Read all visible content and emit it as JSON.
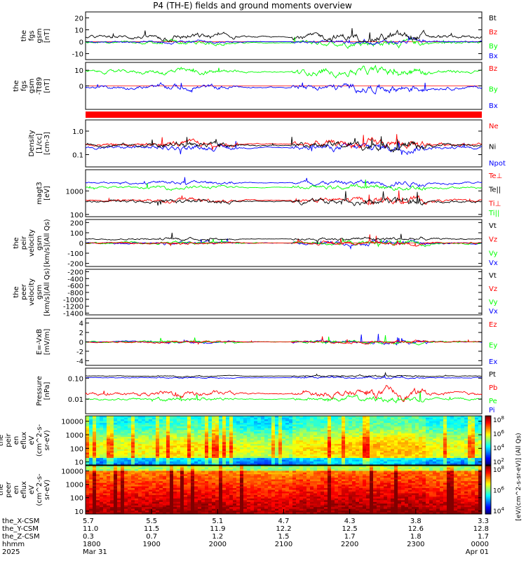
{
  "title": "P4 (TH-E) fields and ground moments overview",
  "colorbar_label": "[eV/(cm^2-s-sr-eV)] (All Qs)",
  "colors": {
    "black": "#000000",
    "red": "#ff0000",
    "green": "#00ff00",
    "blue": "#0000ff",
    "frame": "#000000"
  },
  "x_axis": {
    "row_labels": [
      "the_X-CSM",
      "the_Y-CSM",
      "the_Z-CSM",
      "hhmm",
      "2025"
    ],
    "ticks": [
      {
        "x_csm": "5.7",
        "y_csm": "11.0",
        "z_csm": "0.3",
        "hhmm": "1800",
        "date": "Mar 31"
      },
      {
        "x_csm": "5.5",
        "y_csm": "11.5",
        "z_csm": "0.7",
        "hhmm": "1900",
        "date": ""
      },
      {
        "x_csm": "5.1",
        "y_csm": "11.9",
        "z_csm": "1.2",
        "hhmm": "2000",
        "date": ""
      },
      {
        "x_csm": "4.7",
        "y_csm": "12.2",
        "z_csm": "1.5",
        "hhmm": "2100",
        "date": ""
      },
      {
        "x_csm": "4.3",
        "y_csm": "12.5",
        "z_csm": "1.7",
        "hhmm": "2200",
        "date": ""
      },
      {
        "x_csm": "3.8",
        "y_csm": "12.6",
        "z_csm": "1.8",
        "hhmm": "2300",
        "date": ""
      },
      {
        "x_csm": "3.3",
        "y_csm": "12.8",
        "z_csm": "1.7",
        "hhmm": "0000",
        "date": "Apr 01"
      }
    ]
  },
  "chart_data": [
    {
      "type": "line",
      "ylabel": "the fgs gsm [nT]",
      "ylim": [
        -15,
        25
      ],
      "yticks": [
        "20",
        "10",
        "0",
        "-10"
      ],
      "series": [
        {
          "name": "Bt",
          "color": "black"
        },
        {
          "name": "Bz",
          "color": "red"
        },
        {
          "name": "By",
          "color": "green"
        },
        {
          "name": "Bx",
          "color": "blue"
        }
      ]
    },
    {
      "type": "line",
      "ylabel": "the fgs gsm -Tt89 [nT]",
      "ylim": [
        -15,
        15
      ],
      "yticks": [
        "10",
        "0"
      ],
      "series": [
        {
          "name": "Bz",
          "color": "red"
        },
        {
          "name": "By",
          "color": "green"
        },
        {
          "name": "Bx",
          "color": "blue"
        }
      ]
    },
    {
      "type": "line",
      "ylabel": "Density [1/cc] [cm-3]",
      "log": true,
      "ylim": [
        0.03,
        3
      ],
      "yticks": [
        "1.0",
        "0.1"
      ],
      "series": [
        {
          "name": "Ne",
          "color": "red"
        },
        {
          "name": "Ni",
          "color": "black"
        },
        {
          "name": "Npot",
          "color": "blue"
        }
      ]
    },
    {
      "type": "line",
      "ylabel": "magt3 [eV]",
      "log": true,
      "ylim": [
        80,
        8000
      ],
      "yticks": [
        "1000",
        "100"
      ],
      "series": [
        {
          "name": "Te⊥",
          "color": "red"
        },
        {
          "name": "Te||",
          "color": "black"
        },
        {
          "name": "Ti⊥",
          "color": "red"
        },
        {
          "name": "Ti||",
          "color": "green"
        }
      ]
    },
    {
      "type": "line",
      "ylabel": "the peir velocity gsm [km/s](All Qs)",
      "ylim": [
        -230,
        230
      ],
      "yticks": [
        "200",
        "100",
        "0",
        "-100",
        "-200"
      ],
      "series": [
        {
          "name": "Vt",
          "color": "black"
        },
        {
          "name": "Vz",
          "color": "red"
        },
        {
          "name": "Vy",
          "color": "green"
        },
        {
          "name": "Vx",
          "color": "blue"
        }
      ]
    },
    {
      "type": "line",
      "ylabel": "the peer velocity gsm [km/s](All Qs)",
      "ylim": [
        -1450,
        -130
      ],
      "yticks": [
        "-200",
        "-400",
        "-600",
        "-800",
        "-1000",
        "-1200",
        "-1400"
      ],
      "series": [
        {
          "name": "Vt",
          "color": "black"
        },
        {
          "name": "Vz",
          "color": "red"
        },
        {
          "name": "Vy",
          "color": "green"
        },
        {
          "name": "Vx",
          "color": "blue"
        }
      ]
    },
    {
      "type": "line",
      "ylabel": "E=-VxB [mV/m]",
      "ylim": [
        -5,
        5
      ],
      "yticks": [
        "4",
        "2",
        "0",
        "-2",
        "-4"
      ],
      "series": [
        {
          "name": "Ez",
          "color": "red"
        },
        {
          "name": "Ey",
          "color": "green"
        },
        {
          "name": "Ex",
          "color": "blue"
        }
      ]
    },
    {
      "type": "line",
      "ylabel": "Pressure [nPa]",
      "log": true,
      "ylim": [
        0.002,
        0.3
      ],
      "yticks": [
        "0.10",
        "0.01"
      ],
      "series": [
        {
          "name": "Pt",
          "color": "black"
        },
        {
          "name": "Pb",
          "color": "red"
        },
        {
          "name": "Pe",
          "color": "green"
        },
        {
          "name": "Pi",
          "color": "blue"
        }
      ]
    },
    {
      "type": "heatmap",
      "ylabel": "the peir en eflux eV (cm^2-s-sr-eV)",
      "log": true,
      "ylim": [
        6,
        25000
      ],
      "yticks": [
        "10000",
        "1000",
        "100",
        "10"
      ],
      "colorbar_ticks": [
        "10^8",
        "10^6",
        "10^4",
        "10^2"
      ]
    },
    {
      "type": "heatmap",
      "ylabel": "the peer en eflux eV (cm^2-s-sr-eV)",
      "log": true,
      "ylim": [
        6,
        25000
      ],
      "yticks": [
        "10000",
        "1000",
        "100",
        "10"
      ],
      "colorbar_ticks": [
        "10^8",
        "10^6",
        "10^4"
      ]
    }
  ]
}
